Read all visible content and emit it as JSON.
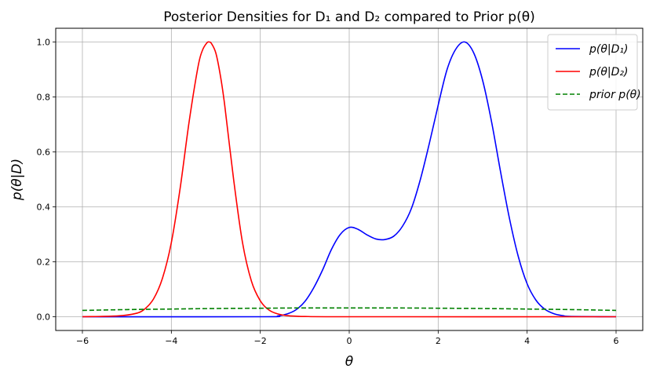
{
  "chart_data": {
    "type": "line",
    "title": "Posterior Densities for D₁ and D₂ compared to Prior p(θ)",
    "xlabel": "θ",
    "ylabel": "p(θ|D)",
    "xlim": [
      -6.6,
      6.6
    ],
    "ylim": [
      -0.05,
      1.05
    ],
    "xticks": [
      -6,
      -4,
      -2,
      0,
      2,
      4,
      6
    ],
    "yticks": [
      0.0,
      0.2,
      0.4,
      0.6,
      0.8,
      1.0
    ],
    "xtick_labels": [
      "−6",
      "−4",
      "−2",
      "0",
      "2",
      "4",
      "6"
    ],
    "ytick_labels": [
      "0.0",
      "0.2",
      "0.4",
      "0.6",
      "0.8",
      "1.0"
    ],
    "grid": true,
    "legend_position": "top-right",
    "series": [
      {
        "name": "p(θ|D₁)",
        "color": "#0000ff",
        "style": "solid",
        "x": [
          -6,
          -2,
          -1.6,
          -1.4,
          -1.2,
          -1.0,
          -0.8,
          -0.6,
          -0.4,
          -0.2,
          0.0,
          0.2,
          0.4,
          0.6,
          0.8,
          1.0,
          1.2,
          1.4,
          1.6,
          1.8,
          2.0,
          2.2,
          2.4,
          2.6,
          2.8,
          3.0,
          3.2,
          3.4,
          3.6,
          3.8,
          4.0,
          4.2,
          4.4,
          4.6,
          4.8,
          5.0,
          6.0
        ],
        "y": [
          0.0,
          0.0,
          0.003,
          0.01,
          0.025,
          0.055,
          0.105,
          0.17,
          0.245,
          0.3,
          0.325,
          0.318,
          0.298,
          0.283,
          0.281,
          0.293,
          0.33,
          0.395,
          0.5,
          0.63,
          0.77,
          0.9,
          0.975,
          1.0,
          0.96,
          0.86,
          0.71,
          0.53,
          0.36,
          0.22,
          0.12,
          0.06,
          0.027,
          0.011,
          0.004,
          0.001,
          0.0
        ]
      },
      {
        "name": "p(θ|D₂)",
        "color": "#ff0000",
        "style": "solid",
        "x": [
          -6,
          -5.2,
          -4.8,
          -4.6,
          -4.4,
          -4.2,
          -4.0,
          -3.8,
          -3.6,
          -3.4,
          -3.3,
          -3.2,
          -3.15,
          -3.1,
          -3.0,
          -2.9,
          -2.8,
          -2.6,
          -2.4,
          -2.2,
          -2.0,
          -1.8,
          -1.6,
          -1.4,
          -1.2,
          -1.0,
          0.0,
          6.0
        ],
        "y": [
          0.0,
          0.003,
          0.012,
          0.028,
          0.065,
          0.14,
          0.27,
          0.47,
          0.71,
          0.91,
          0.97,
          0.997,
          1.0,
          0.995,
          0.96,
          0.88,
          0.77,
          0.5,
          0.27,
          0.13,
          0.058,
          0.024,
          0.01,
          0.004,
          0.002,
          0.001,
          0.0,
          0.0
        ]
      },
      {
        "name": "prior p(θ)",
        "color": "#008000",
        "style": "dashed",
        "x": [
          -6,
          -5,
          -4,
          -3,
          -2,
          -1,
          0,
          1,
          2,
          3,
          4,
          5,
          6
        ],
        "y": [
          0.023,
          0.026,
          0.028,
          0.03,
          0.031,
          0.032,
          0.032,
          0.032,
          0.031,
          0.03,
          0.028,
          0.026,
          0.023
        ]
      }
    ]
  }
}
